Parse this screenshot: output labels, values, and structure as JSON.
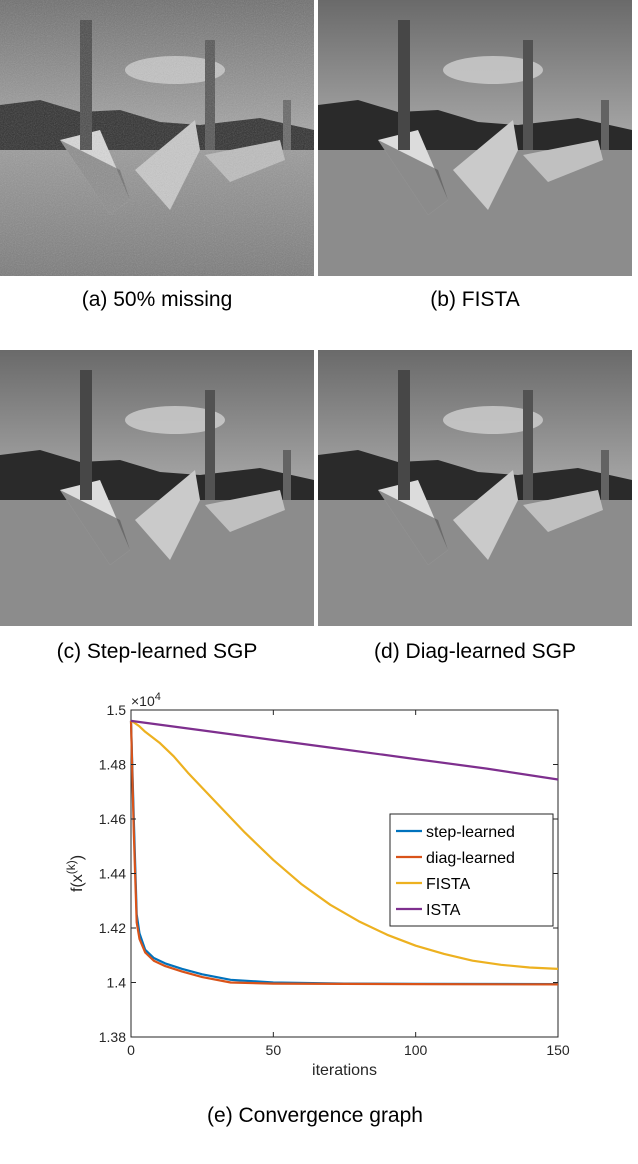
{
  "panels": [
    {
      "id": "a",
      "caption": "(a) 50% missing"
    },
    {
      "id": "b",
      "caption": "(b) FISTA"
    },
    {
      "id": "c",
      "caption": "(c) Step-learned SGP"
    },
    {
      "id": "d",
      "caption": "(d) Diag-learned SGP"
    }
  ],
  "chart_caption": "(e) Convergence graph",
  "chart_data": {
    "type": "line",
    "xlabel": "iterations",
    "ylabel": "f(x^(k))",
    "ylabel_base": "f(x",
    "ylabel_sup": "(k)",
    "ylabel_close": ")",
    "xlim": [
      0,
      150
    ],
    "ylim": [
      1.38,
      1.5
    ],
    "y_multiplier": "×10^4",
    "y_multiplier_base": "×10",
    "y_multiplier_exp": "4",
    "xticks": [
      0,
      50,
      100,
      150
    ],
    "yticks": [
      1.38,
      1.4,
      1.42,
      1.44,
      1.46,
      1.48,
      1.5
    ],
    "legend_position": "right",
    "series": [
      {
        "name": "step-learned",
        "color": "#0072BD",
        "x": [
          0,
          1,
          2,
          3,
          5,
          8,
          12,
          18,
          25,
          35,
          50,
          75,
          100,
          150
        ],
        "y": [
          1.496,
          1.46,
          1.425,
          1.418,
          1.412,
          1.409,
          1.407,
          1.405,
          1.403,
          1.401,
          1.4,
          1.3996,
          1.3995,
          1.3994
        ]
      },
      {
        "name": "diag-learned",
        "color": "#D95319",
        "x": [
          0,
          1,
          2,
          3,
          5,
          8,
          12,
          18,
          25,
          35,
          50,
          75,
          100,
          150
        ],
        "y": [
          1.496,
          1.455,
          1.422,
          1.416,
          1.411,
          1.408,
          1.406,
          1.404,
          1.402,
          1.4,
          1.3996,
          1.3995,
          1.3994,
          1.3993
        ]
      },
      {
        "name": "FISTA",
        "color": "#EDB120",
        "x": [
          0,
          1,
          3,
          5,
          10,
          15,
          20,
          30,
          40,
          50,
          60,
          70,
          80,
          90,
          100,
          110,
          120,
          130,
          140,
          150
        ],
        "y": [
          1.496,
          1.4955,
          1.494,
          1.492,
          1.488,
          1.483,
          1.477,
          1.466,
          1.455,
          1.445,
          1.436,
          1.4285,
          1.4225,
          1.4175,
          1.4135,
          1.4105,
          1.408,
          1.4065,
          1.4055,
          1.405
        ]
      },
      {
        "name": "ISTA",
        "color": "#7E2F8E",
        "x": [
          0,
          25,
          50,
          75,
          100,
          125,
          150
        ],
        "y": [
          1.496,
          1.4925,
          1.489,
          1.4855,
          1.482,
          1.4785,
          1.4745
        ]
      }
    ]
  }
}
